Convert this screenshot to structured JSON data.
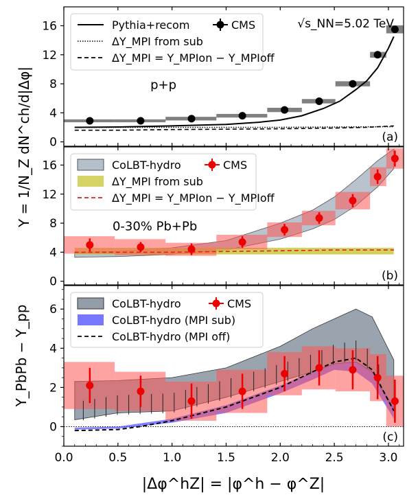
{
  "figure": {
    "xlabel": "|Δφ^hZ| = |φ^h − φ^Z|",
    "xticks": [
      0.0,
      0.5,
      1.0,
      1.5,
      2.0,
      2.5,
      3.0
    ],
    "xlim": [
      0.0,
      3.14
    ]
  },
  "chart_data": [
    {
      "type": "line",
      "panel_label": "(a)",
      "ylabel": "Y = 1/N_Z dN^ch/d|Δφ|",
      "ylim": [
        -0.6,
        18.6
      ],
      "yticks": [
        0,
        4,
        8,
        12,
        16
      ],
      "annotations": {
        "system": "p+p",
        "energy": "√s_NN=5.02 TeV"
      },
      "legend": [
        {
          "label": "Pythia+recom",
          "style": "solid"
        },
        {
          "label": "ΔY_MPI from sub",
          "style": "dotted"
        },
        {
          "label": "ΔY_MPI = Y_MPIon − Y_MPIoff",
          "style": "dashed"
        },
        {
          "label": "CMS",
          "style": "marker"
        }
      ],
      "series": [
        {
          "name": "Pythia+recom",
          "x": [
            0.1,
            0.5,
            1.0,
            1.5,
            1.8,
            2.0,
            2.2,
            2.4,
            2.55,
            2.7,
            2.8,
            2.9,
            3.0,
            3.05
          ],
          "y": [
            2.0,
            2.05,
            2.2,
            2.4,
            2.7,
            3.0,
            3.6,
            4.6,
            5.6,
            7.2,
            8.4,
            10.2,
            12.9,
            14.5
          ]
        },
        {
          "name": "ΔY_MPI from sub",
          "x": [
            0.1,
            1.0,
            2.0,
            2.5,
            3.05
          ],
          "y": [
            2.0,
            2.0,
            2.0,
            2.05,
            2.1
          ]
        },
        {
          "name": "ΔY_MPI = Y_MPIon − Y_MPIoff",
          "x": [
            0.1,
            0.5,
            1.0,
            1.5,
            2.0,
            2.5,
            2.8,
            3.05
          ],
          "y": [
            1.6,
            1.6,
            1.7,
            1.75,
            1.8,
            1.9,
            2.0,
            2.2
          ]
        }
      ],
      "data_points": {
        "name": "CMS",
        "x": [
          0.24,
          0.71,
          1.18,
          1.65,
          2.04,
          2.36,
          2.67,
          2.9,
          3.06
        ],
        "y": [
          2.9,
          2.9,
          3.2,
          3.6,
          4.4,
          5.6,
          8.0,
          12.0,
          15.5
        ],
        "sys_x_low": [
          0.0,
          0.47,
          0.94,
          1.41,
          1.88,
          2.2,
          2.51,
          2.83,
          2.98
        ],
        "sys_x_high": [
          0.47,
          0.94,
          1.41,
          1.88,
          2.2,
          2.51,
          2.83,
          2.98,
          3.14
        ],
        "sys_err": [
          0.2,
          0.2,
          0.25,
          0.25,
          0.3,
          0.3,
          0.35,
          0.4,
          0.55
        ]
      }
    },
    {
      "type": "line",
      "panel_label": "(b)",
      "ylim": [
        -0.5,
        18.5
      ],
      "yticks": [
        0,
        4,
        8,
        12,
        16
      ],
      "annotations": {
        "system": "0-30% Pb+Pb"
      },
      "legend": [
        {
          "label": "CoLBT-hydro",
          "style": "band"
        },
        {
          "label": "ΔY_MPI from sub",
          "style": "band"
        },
        {
          "label": "ΔY_MPI = Y_MPIon − Y_MPIoff",
          "style": "dashed"
        },
        {
          "label": "CMS",
          "style": "marker"
        }
      ],
      "bands": [
        {
          "name": "CoLBT-hydro",
          "x": [
            0.1,
            0.5,
            1.0,
            1.5,
            2.0,
            2.3,
            2.5,
            2.7,
            2.9,
            3.05
          ],
          "low": [
            3.3,
            3.4,
            3.7,
            4.3,
            5.8,
            7.2,
            8.5,
            10.4,
            13.0,
            15.5
          ],
          "high": [
            4.0,
            4.1,
            4.6,
            5.6,
            8.0,
            9.8,
            11.6,
            14.0,
            16.6,
            18.2
          ]
        },
        {
          "name": "ΔY_MPI from sub",
          "x": [
            0.1,
            3.05
          ],
          "low": [
            3.7,
            3.7
          ],
          "high": [
            4.6,
            4.6
          ]
        }
      ],
      "series": [
        {
          "name": "ΔY_MPI = Y_MPIon − Y_MPIoff",
          "x": [
            0.1,
            0.5,
            1.0,
            1.5,
            2.0,
            2.5,
            2.8,
            3.05
          ],
          "y": [
            4.0,
            4.0,
            4.0,
            4.1,
            4.2,
            4.3,
            4.3,
            4.3
          ]
        }
      ],
      "data_points": {
        "name": "CMS",
        "x": [
          0.24,
          0.71,
          1.18,
          1.65,
          2.04,
          2.36,
          2.67,
          2.9,
          3.06
        ],
        "y": [
          5.0,
          4.7,
          4.4,
          5.4,
          7.1,
          8.7,
          11.1,
          14.4,
          16.9
        ],
        "err": [
          0.9,
          0.7,
          0.8,
          0.8,
          0.8,
          0.8,
          0.9,
          1.0,
          1.1
        ],
        "sys_x_low": [
          0.0,
          0.47,
          0.94,
          1.41,
          1.88,
          2.2,
          2.51,
          2.83,
          2.98
        ],
        "sys_x_high": [
          0.47,
          0.94,
          1.41,
          1.88,
          2.2,
          2.51,
          2.83,
          2.98,
          3.14
        ],
        "sys_err": [
          1.2,
          1.1,
          0.9,
          1.0,
          1.0,
          1.0,
          1.2,
          1.3,
          1.4
        ]
      }
    },
    {
      "type": "line",
      "panel_label": "(c)",
      "ylabel": "Y_PbPb − Y_pp",
      "ylim": [
        -1.0,
        7.2
      ],
      "yticks": [
        0,
        2,
        4,
        6
      ],
      "legend": [
        {
          "label": "CoLBT-hydro",
          "style": "band"
        },
        {
          "label": "CoLBT-hydro (MPI sub)",
          "style": "band"
        },
        {
          "label": "CoLBT-hydro (MPI off)",
          "style": "dashed"
        },
        {
          "label": "CMS",
          "style": "marker"
        }
      ],
      "bands": [
        {
          "name": "CoLBT-hydro",
          "x": [
            0.1,
            0.5,
            1.0,
            1.5,
            2.0,
            2.3,
            2.5,
            2.7,
            2.85,
            3.05
          ],
          "low": [
            0.35,
            0.7,
            0.8,
            1.5,
            2.3,
            2.8,
            3.2,
            3.3,
            2.8,
            0.8
          ],
          "high": [
            2.3,
            2.35,
            2.5,
            3.0,
            4.1,
            5.0,
            5.5,
            6.0,
            5.6,
            3.4
          ]
        },
        {
          "name": "CoLBT-hydro (MPI sub)",
          "x": [
            0.1,
            0.5,
            1.0,
            1.5,
            2.0,
            2.3,
            2.5,
            2.7,
            2.85,
            3.05
          ],
          "low": [
            -0.15,
            -0.1,
            0.2,
            0.7,
            1.7,
            2.4,
            2.9,
            2.8,
            2.2,
            0.4
          ],
          "high": [
            -0.05,
            0.0,
            0.4,
            1.1,
            2.1,
            2.8,
            3.2,
            3.3,
            2.8,
            1.0
          ]
        }
      ],
      "series": [
        {
          "name": "CoLBT-hydro (MPI off)",
          "x": [
            0.1,
            0.5,
            0.7,
            1.0,
            1.5,
            2.0,
            2.3,
            2.5,
            2.7,
            2.85,
            3.05
          ],
          "y": [
            -0.2,
            -0.15,
            0.0,
            0.3,
            1.0,
            2.0,
            2.8,
            3.3,
            3.5,
            2.9,
            0.8
          ]
        }
      ],
      "data_points": {
        "name": "CMS",
        "x": [
          0.24,
          0.71,
          1.18,
          1.65,
          2.04,
          2.36,
          2.67,
          2.9,
          3.06
        ],
        "y": [
          2.1,
          1.8,
          1.3,
          1.8,
          2.7,
          3.0,
          2.9,
          2.5,
          1.3
        ],
        "err": [
          0.9,
          0.8,
          0.9,
          0.9,
          0.9,
          0.9,
          1.0,
          1.1,
          1.1
        ],
        "sys_x_low": [
          0.0,
          0.47,
          0.94,
          1.41,
          1.88,
          2.2,
          2.51,
          2.83,
          2.98
        ],
        "sys_x_high": [
          0.47,
          0.94,
          1.41,
          1.88,
          2.2,
          2.51,
          2.83,
          2.98,
          3.14
        ],
        "sys_err": [
          1.2,
          1.0,
          1.0,
          1.1,
          1.1,
          1.1,
          1.1,
          1.2,
          1.3
        ]
      }
    }
  ]
}
